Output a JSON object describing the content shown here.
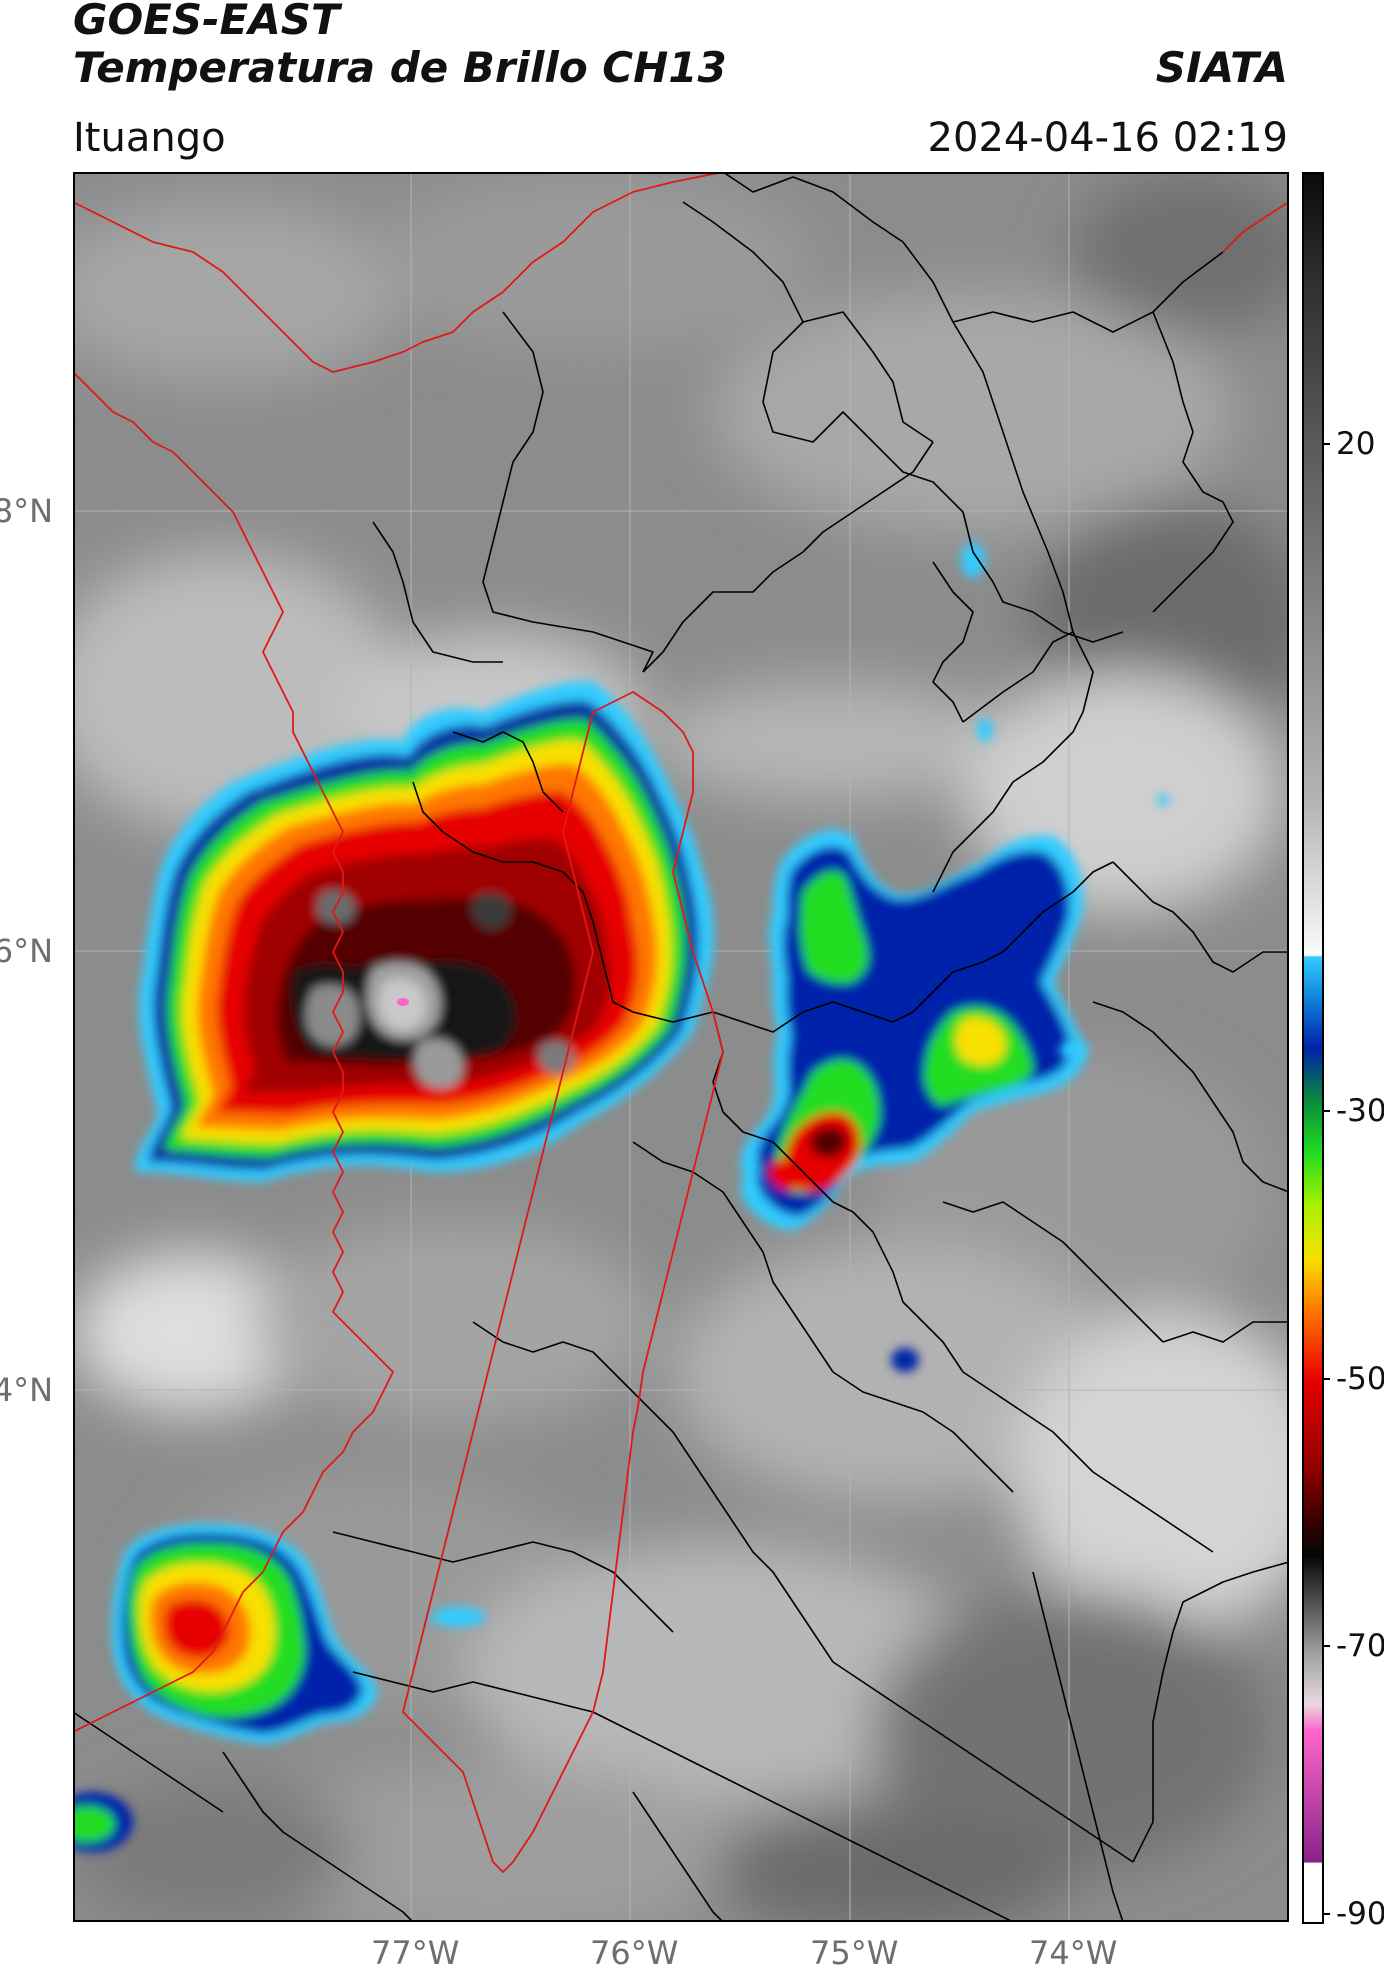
{
  "header": {
    "satellite": "GOES-EAST",
    "product": "Temperatura de Brillo CH13",
    "agency": "SIATA",
    "location": "Ituango",
    "timestamp": "2024-04-16 02:19"
  },
  "axes": {
    "lat_labels": [
      "8°N",
      "6°N",
      "4°N"
    ],
    "lon_labels": [
      "77°W",
      "76°W",
      "75°W",
      "74°W"
    ],
    "lat_range": [
      2.0,
      9.5
    ],
    "lon_range": [
      -78.5,
      -72.9
    ]
  },
  "colorbar": {
    "tick_labels": [
      "20",
      "-30",
      "-50",
      "-70",
      "-90"
    ],
    "range": [
      -92,
      47
    ],
    "colors": {
      "warm_gray_top": "#202020",
      "warm_gray_bottom": "#f2f2f2",
      "cyan": "#33ccff",
      "blue": "#0022aa",
      "green": "#22dd22",
      "yellow": "#f8e000",
      "orange": "#ff7700",
      "red": "#e60000",
      "dark_red": "#550000",
      "black": "#050505",
      "gray": "#aaaaaa",
      "pink": "#ff66cc",
      "purple": "#882288"
    }
  },
  "boundary_colors": {
    "departments": "#000000",
    "highlight": "#e01818"
  }
}
